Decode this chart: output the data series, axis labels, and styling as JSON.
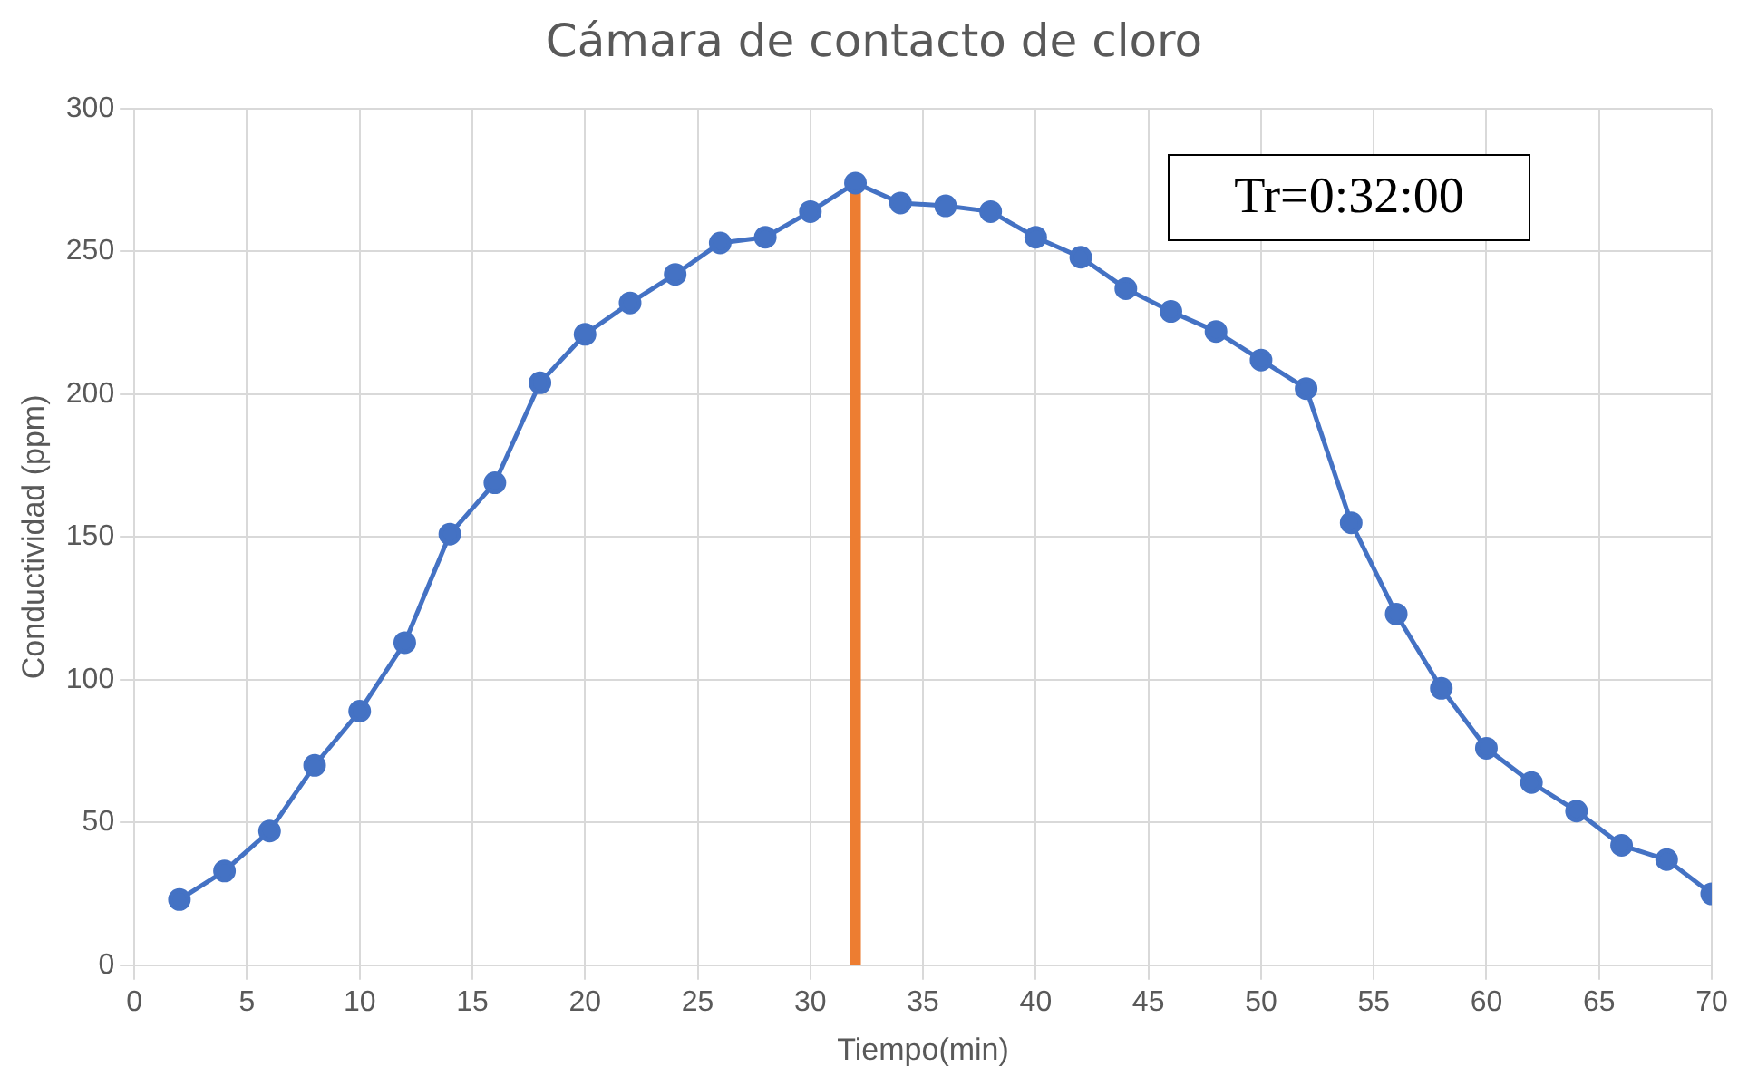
{
  "chart_data": {
    "type": "line",
    "title": "Cámara de contacto de cloro",
    "xlabel": "Tiempo(min)",
    "ylabel": "Conductividad (ppm)",
    "xlim": [
      0,
      70
    ],
    "xticks": [
      0,
      5,
      10,
      15,
      20,
      25,
      30,
      35,
      40,
      45,
      50,
      55,
      60,
      65,
      70
    ],
    "ylim": [
      0,
      300
    ],
    "yticks": [
      0,
      50,
      100,
      150,
      200,
      250,
      300
    ],
    "grid": true,
    "legend": false,
    "marker": "circle",
    "line_style": "solid",
    "annotations": [
      "Tr=0:32:00"
    ],
    "series": [
      {
        "color": "#4472c4",
        "x": [
          2,
          4,
          6,
          8,
          10,
          12,
          14,
          16,
          18,
          20,
          22,
          24,
          26,
          28,
          30,
          32,
          34,
          36,
          38,
          40,
          42,
          44,
          46,
          48,
          50,
          52,
          54,
          56,
          58,
          60,
          62,
          64,
          66,
          68,
          70
        ],
        "values": [
          23,
          33,
          47,
          70,
          89,
          113,
          151,
          169,
          204,
          221,
          232,
          242,
          253,
          255,
          264,
          274,
          267,
          266,
          264,
          255,
          248,
          237,
          229,
          222,
          212,
          202,
          155,
          123,
          97,
          76,
          64,
          54,
          42,
          37,
          25
        ]
      },
      {
        "color": "#ed7d31",
        "marker": "none",
        "x": [
          32,
          32
        ],
        "values": [
          0,
          274
        ]
      }
    ]
  }
}
